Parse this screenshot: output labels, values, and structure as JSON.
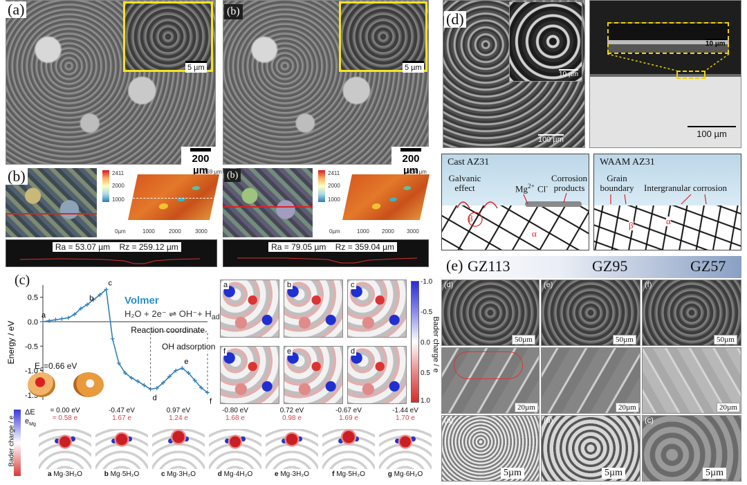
{
  "panel_a": {
    "label_a": "(a)",
    "label_b": "(b)",
    "scale_main": "200 µm",
    "scale_inset": "5 µm"
  },
  "panel_b": {
    "label": "(b)",
    "left": {
      "ra": "Ra = 53.07 µm",
      "rz": "Rz = 259.12 µm",
      "cb_max": "2411",
      "cb_mid": "2000",
      "cb_min": "1000",
      "z_top": "259 µm",
      "z_bot": "0"
    },
    "right": {
      "ra": "Ra = 79.05 µm",
      "rz": "Rz = 359.04 µm",
      "cb_max": "2411",
      "cb_mid": "2000",
      "cb_min": "1000",
      "z_top": "434 µm",
      "z_bot": "0"
    },
    "x_ticks": [
      "0µm",
      "1000",
      "2000",
      "3000"
    ]
  },
  "panel_c": {
    "label": "(c)",
    "ylabel": "Energy / eV",
    "xlabel": "Reaction coordinate",
    "volmer_title": "Volmer",
    "volmer_eq": "H₂O + 2e⁻ ⇌ OH⁻+ H",
    "volmer_sub": "ad",
    "oh_label": "OH adsorption",
    "ec_label": "E",
    "ec_sub": "c",
    "ec_value": "=0.66 eV",
    "point_letters": [
      "a",
      "b",
      "c",
      "d",
      "e",
      "f"
    ],
    "y_ticks": [
      "0.5",
      "0.0",
      "-0.5",
      "-1.0",
      "-1.5"
    ],
    "bader_label": "Bader charge / e",
    "bader_ticks": [
      "-1.0",
      "-0.5",
      "0.0",
      "0.5",
      "1.0"
    ],
    "grid_letters": [
      "a",
      "b",
      "c",
      "f",
      "e",
      "d"
    ],
    "bottom": {
      "de_label": "ΔE",
      "emg_label": "e",
      "emg_sub": "Mg",
      "bader_axis": "Bader charge / e",
      "entries": [
        {
          "letter": "a",
          "de": "= 0.00 eV",
          "emg": "= 0.58 e",
          "name": "Mg·3H₂O"
        },
        {
          "letter": "b",
          "de": "-0.47 eV",
          "emg": "1.67 e",
          "name": "Mg·5H₂O"
        },
        {
          "letter": "c",
          "de": "0.97 eV",
          "emg": "1.24 e",
          "name": "Mg·3H₂O"
        },
        {
          "letter": "d",
          "de": "-0.80 eV",
          "emg": "1.68 e",
          "name": "Mg·4H₂O"
        },
        {
          "letter": "e",
          "de": "0.72 eV",
          "emg": "0.98 e",
          "name": "Mg·3H₂O"
        },
        {
          "letter": "f",
          "de": "-0.67 eV",
          "emg": "1.69 e",
          "name": "Mg·5H₂O"
        },
        {
          "letter": "g",
          "de": "-1.44 eV",
          "emg": "1.70 e",
          "name": "Mg·6H₂O"
        }
      ]
    }
  },
  "chart_data": {
    "type": "line",
    "xlabel": "Reaction coordinate",
    "ylabel": "Energy / eV",
    "ylim": [
      -1.6,
      0.75
    ],
    "x": [
      0,
      1,
      2,
      3,
      4,
      5,
      6,
      7,
      8,
      9,
      10,
      11,
      12,
      13,
      14,
      15,
      16,
      17,
      18,
      19,
      20,
      21,
      22,
      23,
      24,
      25,
      26
    ],
    "y": [
      0.0,
      0.02,
      0.04,
      0.06,
      0.08,
      0.15,
      0.27,
      0.35,
      0.45,
      0.55,
      0.66,
      -0.35,
      -0.85,
      -1.05,
      -1.15,
      -1.22,
      -1.3,
      -1.38,
      -1.36,
      -1.25,
      -1.12,
      -1.0,
      -0.95,
      -1.05,
      -1.2,
      -1.35,
      -1.45
    ],
    "labeled_points": [
      {
        "label": "a",
        "x": 0,
        "y": 0.0
      },
      {
        "label": "b",
        "x": 7,
        "y": 0.35
      },
      {
        "label": "c",
        "x": 10,
        "y": 0.66
      },
      {
        "label": "d",
        "x": 17,
        "y": -1.38
      },
      {
        "label": "e",
        "x": 22,
        "y": -0.95
      },
      {
        "label": "f",
        "x": 26,
        "y": -1.45
      }
    ],
    "annotations": [
      "Volmer",
      "OH adsorption",
      "Ec=0.66 eV"
    ]
  },
  "panel_d": {
    "label": "(d)",
    "scale_left": "100 µm",
    "scale_inset": "10 µm",
    "scale_right_inset": "10 µm",
    "scale_right": "100 µm",
    "cast": {
      "title": "Cast AZ31",
      "galvanic": "Galvanic effect",
      "mg": "Mg",
      "mg_sup": "2+",
      "cl": "Cl",
      "cl_sup": "-",
      "products": "Corrosion products",
      "beta": "β",
      "alpha": "α"
    },
    "waam": {
      "title": "WAAM AZ31",
      "grain": "Grain boundary",
      "intergranular": "Intergranular corrosion",
      "beta": "β",
      "alpha": "α"
    }
  },
  "panel_e": {
    "label": "(e)",
    "heads": [
      "GZ113",
      "GZ95",
      "GZ57"
    ],
    "row1_tags": [
      "(d)",
      "(e)",
      "(f)"
    ],
    "row1_scale": "50µm",
    "row2_scale": "20µm",
    "row3_tags": [
      "(a)",
      "(b)",
      "(c)"
    ],
    "row3_scale": "5µm"
  }
}
